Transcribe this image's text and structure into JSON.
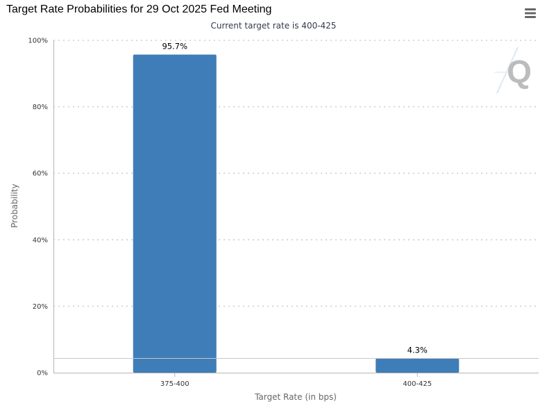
{
  "header": {
    "title": "Target Rate Probabilities for 29 Oct 2025 Fed Meeting",
    "subtitle": "Current target rate is 400-425",
    "menu_icon": "hamburger-menu-icon"
  },
  "watermark": {
    "icon": "q-logo-icon",
    "letter": "Q"
  },
  "colors": {
    "bar": "#3f7db8",
    "grid": "#cfcfcf",
    "axis": "#b5b5b5",
    "reference_line": "#c8c8c8"
  },
  "chart_data": {
    "type": "bar",
    "categories": [
      "375-400",
      "400-425"
    ],
    "values": [
      95.7,
      4.3
    ],
    "data_labels": [
      "95.7%",
      "4.3%"
    ],
    "xlabel": "Target Rate (in bps)",
    "ylabel": "Probability",
    "ylim": [
      0,
      100
    ],
    "yticks": [
      0,
      20,
      40,
      60,
      80,
      100
    ],
    "ytick_labels": [
      "0%",
      "20%",
      "40%",
      "60%",
      "80%",
      "100%"
    ],
    "reference_line_value": 4.3,
    "grid": true,
    "legend": "none"
  }
}
